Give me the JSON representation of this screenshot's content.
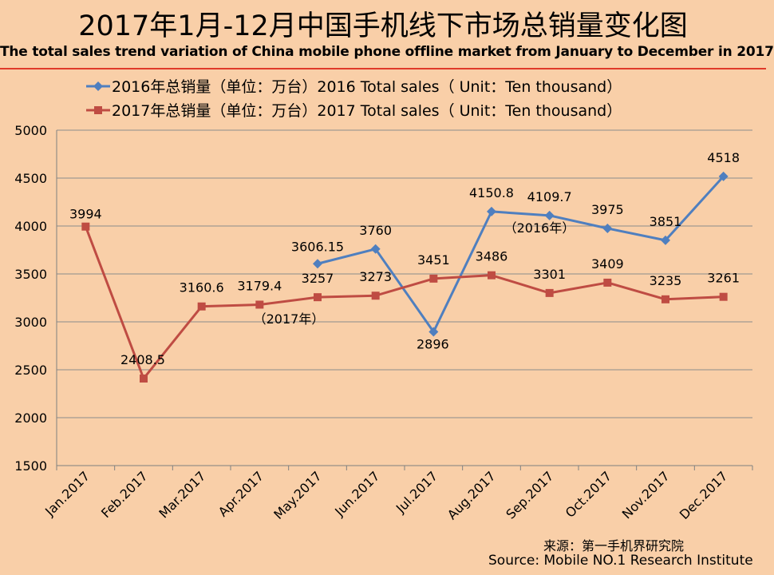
{
  "title": "2017年1月-12月中国手机线下市场总销量变化图",
  "subtitle": "The total sales trend variation of China mobile phone offline market from January to December in 2017",
  "source_cn": "来源：第一手机界研究院",
  "source_en": "Source: Mobile NO.1 Research Institute",
  "colors": {
    "series2016": "#4f7fbf",
    "series2017": "#bf4c43",
    "title_rule": "#e03a2a",
    "background": "#f9cfa8"
  },
  "chart_data": {
    "type": "line",
    "categories": [
      "Jan.2017",
      "Feb.2017",
      "Mar.2017",
      "Apr.2017",
      "May.2017",
      "Jun.2017",
      "Jul.2017",
      "Aug.2017",
      "Sep.2017",
      "Oct.2017",
      "Nov.2017",
      "Dec.2017"
    ],
    "ylim": [
      1500,
      5000
    ],
    "yticks": [
      1500,
      2000,
      2500,
      3000,
      3500,
      4000,
      4500,
      5000
    ],
    "grid": "horizontal",
    "legend": "top",
    "series": [
      {
        "name": "2016年总销量（单位：万台）2016 Total sales（ Unit：Ten thousand）",
        "marker": "diamond",
        "values": [
          null,
          null,
          null,
          null,
          3606.15,
          3760,
          2896,
          4150.8,
          4109.7,
          3975,
          3851,
          4518
        ],
        "labels": [
          "",
          "",
          "",
          "",
          "3606.15",
          "3760",
          "2896",
          "4150.8",
          "4109.7",
          "3975",
          "3851",
          "4518"
        ]
      },
      {
        "name": "2017年总销量（单位：万台）2017 Total sales（ Unit：Ten thousand）",
        "marker": "square",
        "values": [
          3994,
          2408.5,
          3160.6,
          3179.4,
          3257,
          3273,
          3451,
          3486,
          3301,
          3409,
          3235,
          3261
        ],
        "labels": [
          "3994",
          "2408.5",
          "3160.6",
          "3179.4",
          "3257",
          "3273",
          "3451",
          "3486",
          "3301",
          "3409",
          "3235",
          "3261"
        ]
      }
    ],
    "annotations": [
      "（2016年）",
      "（2017年）"
    ]
  }
}
